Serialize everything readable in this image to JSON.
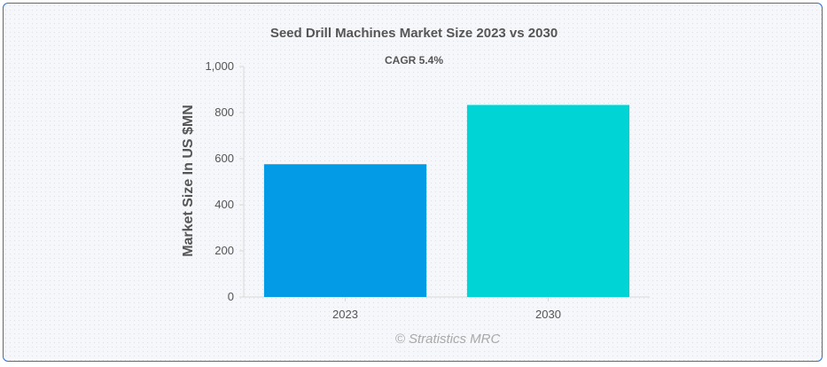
{
  "chart_data": {
    "type": "bar",
    "title": "Seed Drill Machines Market Size 2023 vs 2030",
    "subtitle": "CAGR 5.4%",
    "categories": [
      "2023",
      "2030"
    ],
    "values": [
      576,
      833
    ],
    "colors": [
      "#039be5",
      "#00d4d4"
    ],
    "xlabel": "",
    "ylabel": "Market Size In US $MN",
    "ylim": [
      0,
      1000
    ],
    "yticks": [
      0,
      200,
      400,
      600,
      800,
      1000
    ],
    "ytick_labels": [
      "0",
      "200",
      "400",
      "600",
      "800",
      "1,000"
    ],
    "grid": false,
    "legend": "none"
  },
  "credit": "© Stratistics MRC"
}
